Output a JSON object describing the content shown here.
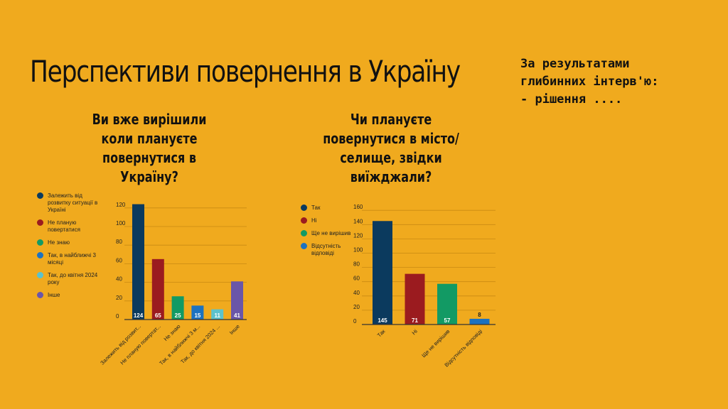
{
  "slide": {
    "title": "Перспективи повернення в Україну",
    "note": "За результатами\nглибинних інтерв'ю:\n- рішення ...."
  },
  "chart_data": [
    {
      "type": "bar",
      "title": "Ви вже вирішили коли плануєте повернутися в Україну?",
      "categories": [
        "Залежить від розвит...",
        "Не планую повертат...",
        "Не знаю",
        "Так, в найближчі 3 м...",
        "Так, до квітня 2024 ...",
        "Інше"
      ],
      "legend": [
        "Залежить від розвитку ситуації в Україні",
        "Не планую повертатися",
        "Не знаю",
        "Так, в найближчі 3 місяці",
        "Так, до квітня 2024 року",
        "Інше"
      ],
      "values": [
        124,
        65,
        25,
        15,
        11,
        41
      ],
      "colors": [
        "#0B3A5E",
        "#9B1B1F",
        "#129A64",
        "#1C72C0",
        "#5CC2CC",
        "#6A56A8"
      ],
      "yticks": [
        0,
        20,
        40,
        60,
        80,
        100,
        120
      ],
      "ylim": [
        0,
        125
      ],
      "legend_position": "left",
      "grid": true
    },
    {
      "type": "bar",
      "title": "Чи плануєте повернутися в місто/селище, звідки виїжджали?",
      "categories": [
        "Так",
        "Ні",
        "Ще не вирішив",
        "Відсутність відповіді"
      ],
      "legend": [
        "Так",
        "Ні",
        "Ще не вирішив",
        "Відсутність відповіді"
      ],
      "values": [
        145,
        71,
        57,
        8
      ],
      "colors": [
        "#0B3A5E",
        "#9B1B1F",
        "#129A64",
        "#1C72C0"
      ],
      "yticks": [
        0,
        20,
        40,
        60,
        80,
        100,
        120,
        140,
        160
      ],
      "ylim": [
        0,
        160
      ],
      "legend_position": "left",
      "grid": true
    }
  ]
}
